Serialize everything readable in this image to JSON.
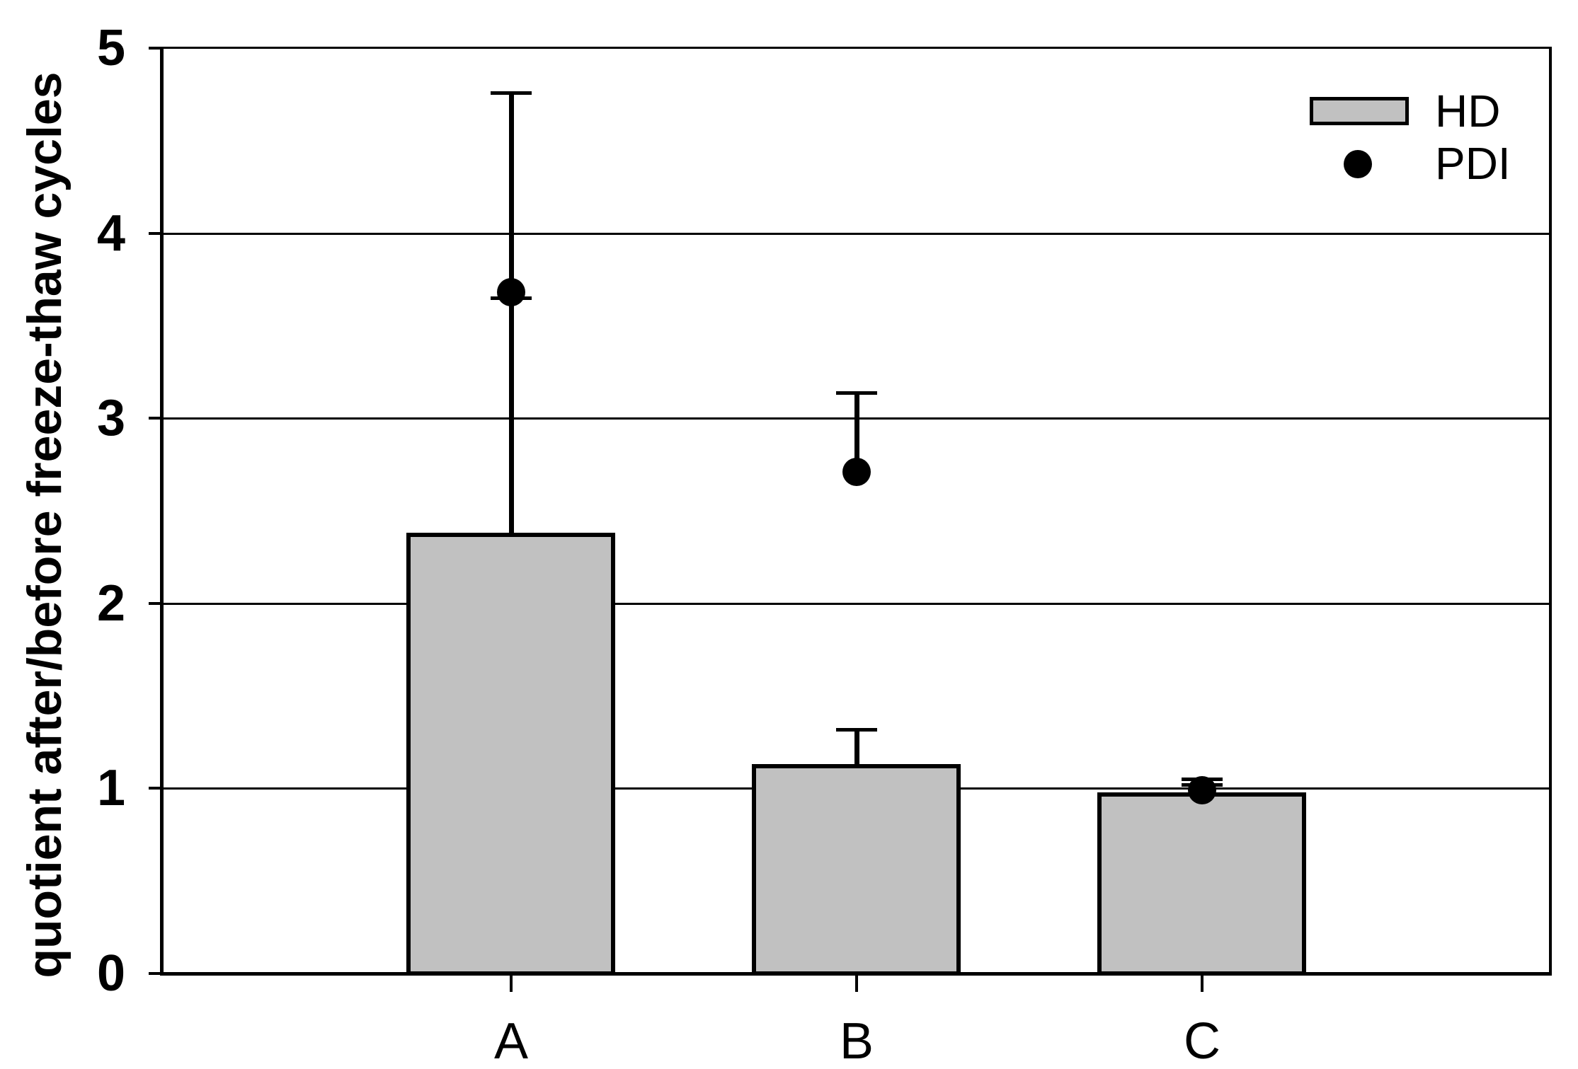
{
  "chart_data": {
    "type": "bar",
    "title": "",
    "xlabel": "",
    "ylabel": "quotient after/before freeze-thaw cycles",
    "categories": [
      "A",
      "B",
      "C"
    ],
    "ylim": [
      0,
      5
    ],
    "yticks": [
      "0",
      "1",
      "2",
      "3",
      "4",
      "5"
    ],
    "grid": "horizontal gridlines at integers, full plot frame",
    "legend_position": "top-right inside plot",
    "series": [
      {
        "name": "HD",
        "type": "bar",
        "fill_color": "#c1c1c1",
        "stroke_color": "#000000",
        "values": [
          2.38,
          1.13,
          0.98
        ],
        "error_cap_values": [
          4.76,
          1.32,
          1.02
        ]
      },
      {
        "name": "PDI",
        "type": "scatter",
        "marker": "filled-circle",
        "fill_color": "#000000",
        "values": [
          3.68,
          2.71,
          0.99
        ],
        "error_cap_values": [
          3.65,
          3.14,
          1.05
        ]
      }
    ]
  },
  "legend": {
    "items": [
      {
        "label": "HD",
        "swatch": "gray-rectangle"
      },
      {
        "label": "PDI",
        "swatch": "black-dot"
      }
    ]
  }
}
